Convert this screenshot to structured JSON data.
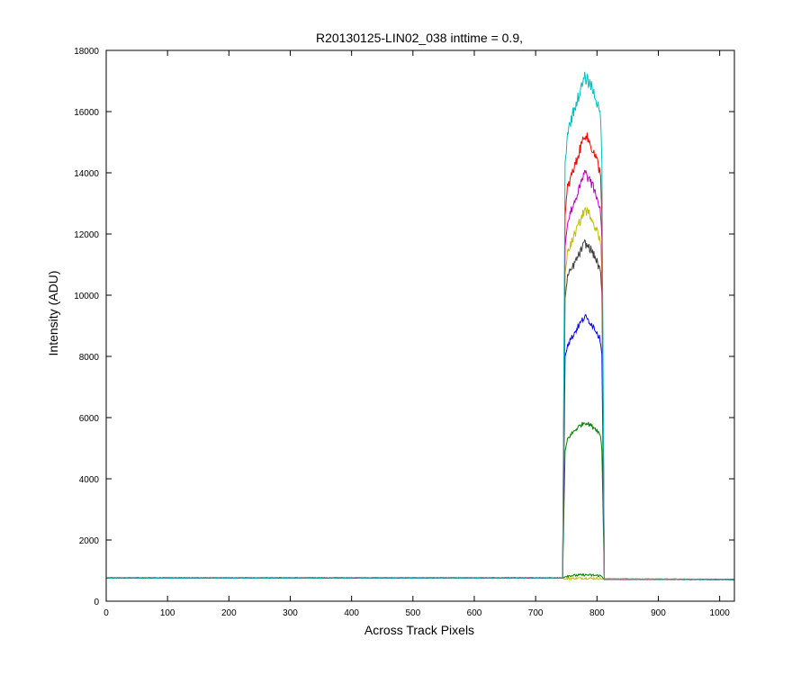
{
  "chart_data": {
    "type": "line",
    "title": "R20130125-LIN02_038 inttime = 0.9,",
    "xlabel": "Across Track Pixels",
    "ylabel": "Intensity (ADU)",
    "xlim": [
      0,
      1024
    ],
    "ylim": [
      0,
      18000
    ],
    "xticks": [
      0,
      100,
      200,
      300,
      400,
      500,
      600,
      700,
      800,
      900,
      1000
    ],
    "yticks": [
      0,
      2000,
      4000,
      6000,
      8000,
      10000,
      12000,
      14000,
      16000,
      18000
    ],
    "grid": false,
    "legend": "none",
    "baseline": {
      "x": [
        0,
        745,
        808,
        1024
      ],
      "y": [
        760,
        740,
        740,
        710
      ]
    },
    "plateau": {
      "start": 750,
      "end": 808
    },
    "series": [
      {
        "color": "#bfbf00",
        "x": [
          0,
          744,
          748,
          752,
          760,
          770,
          780,
          790,
          800,
          806,
          808,
          812,
          1024
        ],
        "y": [
          760,
          760,
          720,
          740,
          745,
          750,
          755,
          750,
          745,
          740,
          730,
          720,
          710
        ]
      },
      {
        "color": "#007f00",
        "x": [
          0,
          744,
          748,
          752,
          760,
          770,
          780,
          790,
          800,
          806,
          808,
          812,
          1024
        ],
        "y": [
          760,
          760,
          800,
          830,
          840,
          850,
          860,
          850,
          840,
          830,
          800,
          720,
          710
        ]
      },
      {
        "color": "#007f00",
        "x": [
          0,
          744,
          748,
          752,
          760,
          770,
          780,
          790,
          800,
          806,
          808,
          812,
          1024
        ],
        "y": [
          760,
          760,
          4900,
          5300,
          5500,
          5700,
          5850,
          5750,
          5600,
          5400,
          4950,
          720,
          710
        ]
      },
      {
        "color": "#0000ff",
        "x": [
          0,
          744,
          748,
          752,
          760,
          770,
          780,
          790,
          800,
          806,
          808,
          812,
          1024
        ],
        "y": [
          760,
          760,
          8000,
          8400,
          8650,
          9000,
          9300,
          9100,
          8800,
          8500,
          8100,
          720,
          710
        ]
      },
      {
        "color": "#3f3f3f",
        "x": [
          0,
          744,
          748,
          752,
          760,
          770,
          780,
          790,
          800,
          806,
          808,
          812,
          1024
        ],
        "y": [
          760,
          760,
          9900,
          10600,
          10900,
          11300,
          11700,
          11500,
          11100,
          10700,
          10000,
          720,
          710
        ]
      },
      {
        "color": "#bfbf00",
        "x": [
          0,
          744,
          748,
          752,
          760,
          770,
          780,
          790,
          800,
          806,
          808,
          812,
          1024
        ],
        "y": [
          760,
          760,
          10700,
          11400,
          11800,
          12300,
          12800,
          12600,
          12100,
          11700,
          10800,
          720,
          710
        ]
      },
      {
        "color": "#bf00bf",
        "x": [
          0,
          744,
          748,
          752,
          760,
          770,
          780,
          790,
          800,
          806,
          808,
          812,
          1024
        ],
        "y": [
          760,
          760,
          11600,
          12400,
          12900,
          13400,
          14000,
          13700,
          13200,
          12700,
          11700,
          720,
          710
        ]
      },
      {
        "color": "#ff0000",
        "x": [
          0,
          744,
          748,
          752,
          760,
          770,
          780,
          790,
          800,
          806,
          808,
          812,
          1024
        ],
        "y": [
          760,
          760,
          12600,
          13500,
          14000,
          14600,
          15300,
          14900,
          14400,
          13900,
          12700,
          720,
          710
        ]
      },
      {
        "color": "#00bfbf",
        "x": [
          0,
          744,
          748,
          752,
          760,
          770,
          780,
          790,
          800,
          806,
          808,
          812,
          1024
        ],
        "y": [
          760,
          760,
          14300,
          15300,
          15900,
          16500,
          17100,
          16900,
          16300,
          15800,
          14400,
          720,
          710
        ]
      }
    ]
  }
}
